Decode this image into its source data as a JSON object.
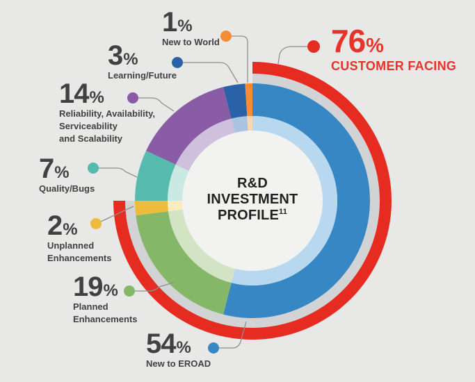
{
  "colors": {
    "background": "#e8e8e7",
    "center_circle": "#f2f3f1",
    "text": "#414042",
    "title_text": "#221f20",
    "leader_line": "#8d8e90",
    "accent_red": "#e6342b"
  },
  "chart_data": {
    "type": "pie",
    "variant": "donut",
    "direction": "clockwise",
    "start_at": "top",
    "percent_sign": "%",
    "center_label": {
      "lines": [
        "R&D",
        "INVESTMENT",
        "PROFILE"
      ],
      "superscript": "11"
    },
    "segments": [
      {
        "label": "New to EROAD",
        "value": 54,
        "label_lines": [
          "New to EROAD"
        ],
        "color": "#3787c5",
        "inner_ring_color": "#b7d8ee"
      },
      {
        "label": "Planned Enhancements",
        "value": 19,
        "label_lines": [
          "Planned",
          "Enhancements"
        ],
        "color": "#85b768",
        "inner_ring_color": "#d3e4c5"
      },
      {
        "label": "Unplanned Enhancements",
        "value": 2,
        "label_lines": [
          "Unplanned",
          "Enhancements"
        ],
        "color": "#eebb3d",
        "inner_ring_color": "#f9ecc0"
      },
      {
        "label": "Quality/Bugs",
        "value": 7,
        "label_lines": [
          "Quality/Bugs"
        ],
        "color": "#56bbac",
        "inner_ring_color": "#cbe9e3"
      },
      {
        "label": "Reliability, Availability, Serviceability and Scalability",
        "value": 14,
        "label_lines": [
          "Reliability, Availability,",
          "Serviceability",
          "and Scalability"
        ],
        "color": "#8b5ca6",
        "inner_ring_color": "#cfc0dd"
      },
      {
        "label": "Learning/Future",
        "value": 3,
        "label_lines": [
          "Learning/Future"
        ],
        "color": "#2a62a8",
        "inner_ring_color": "#aac4e2"
      },
      {
        "label": "New to World",
        "value": 1,
        "label_lines": [
          "New to World"
        ],
        "color": "#f68c33",
        "inner_ring_color": "#f8d8b2"
      }
    ],
    "outer_arc": {
      "label": "CUSTOMER FACING",
      "value": 76,
      "color": "#e62b21",
      "track_color": "#d2d3d5",
      "coverage": [
        0,
        0.75
      ]
    }
  }
}
